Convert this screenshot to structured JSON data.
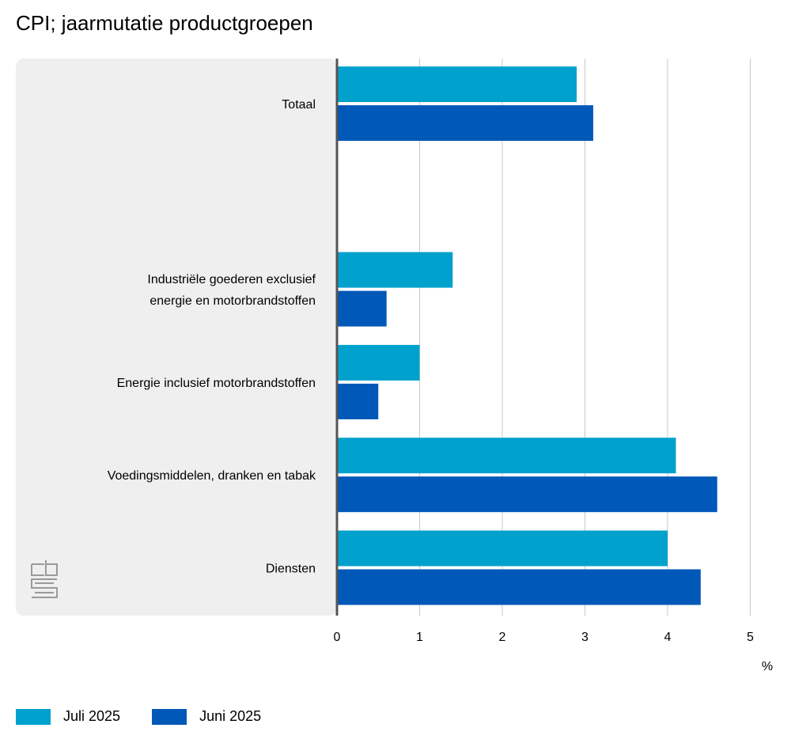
{
  "title": "CPI; jaarmutatie productgroepen",
  "chart_data": {
    "type": "bar",
    "orientation": "horizontal",
    "title": "CPI; jaarmutatie productgroepen",
    "categories": [
      [
        "Totaal"
      ],
      [],
      [
        "Industriële goederen exclusief",
        "energie en motorbrandstoffen"
      ],
      [
        "Energie inclusief motorbrandstoffen"
      ],
      [
        "Voedingsmiddelen, dranken en tabak"
      ],
      [
        "Diensten"
      ]
    ],
    "series": [
      {
        "name": "Juli 2025",
        "color": "#00A1CD",
        "values": [
          2.9,
          null,
          1.4,
          1.0,
          4.1,
          4.0
        ]
      },
      {
        "name": "Juni 2025",
        "color": "#0058B8",
        "values": [
          3.1,
          null,
          0.6,
          0.5,
          4.6,
          4.4
        ]
      }
    ],
    "x_ticks": [
      "0",
      "1",
      "2",
      "3",
      "4",
      "5"
    ],
    "xlim": [
      0,
      5.3
    ],
    "unit_label": "%",
    "grid": "vertical",
    "legend_position": "bottom-left"
  },
  "legend": [
    {
      "label": "Juli 2025",
      "color": "#00A1CD"
    },
    {
      "label": "Juni 2025",
      "color": "#0058B8"
    }
  ],
  "logo_icon": "cbs-logo-icon"
}
